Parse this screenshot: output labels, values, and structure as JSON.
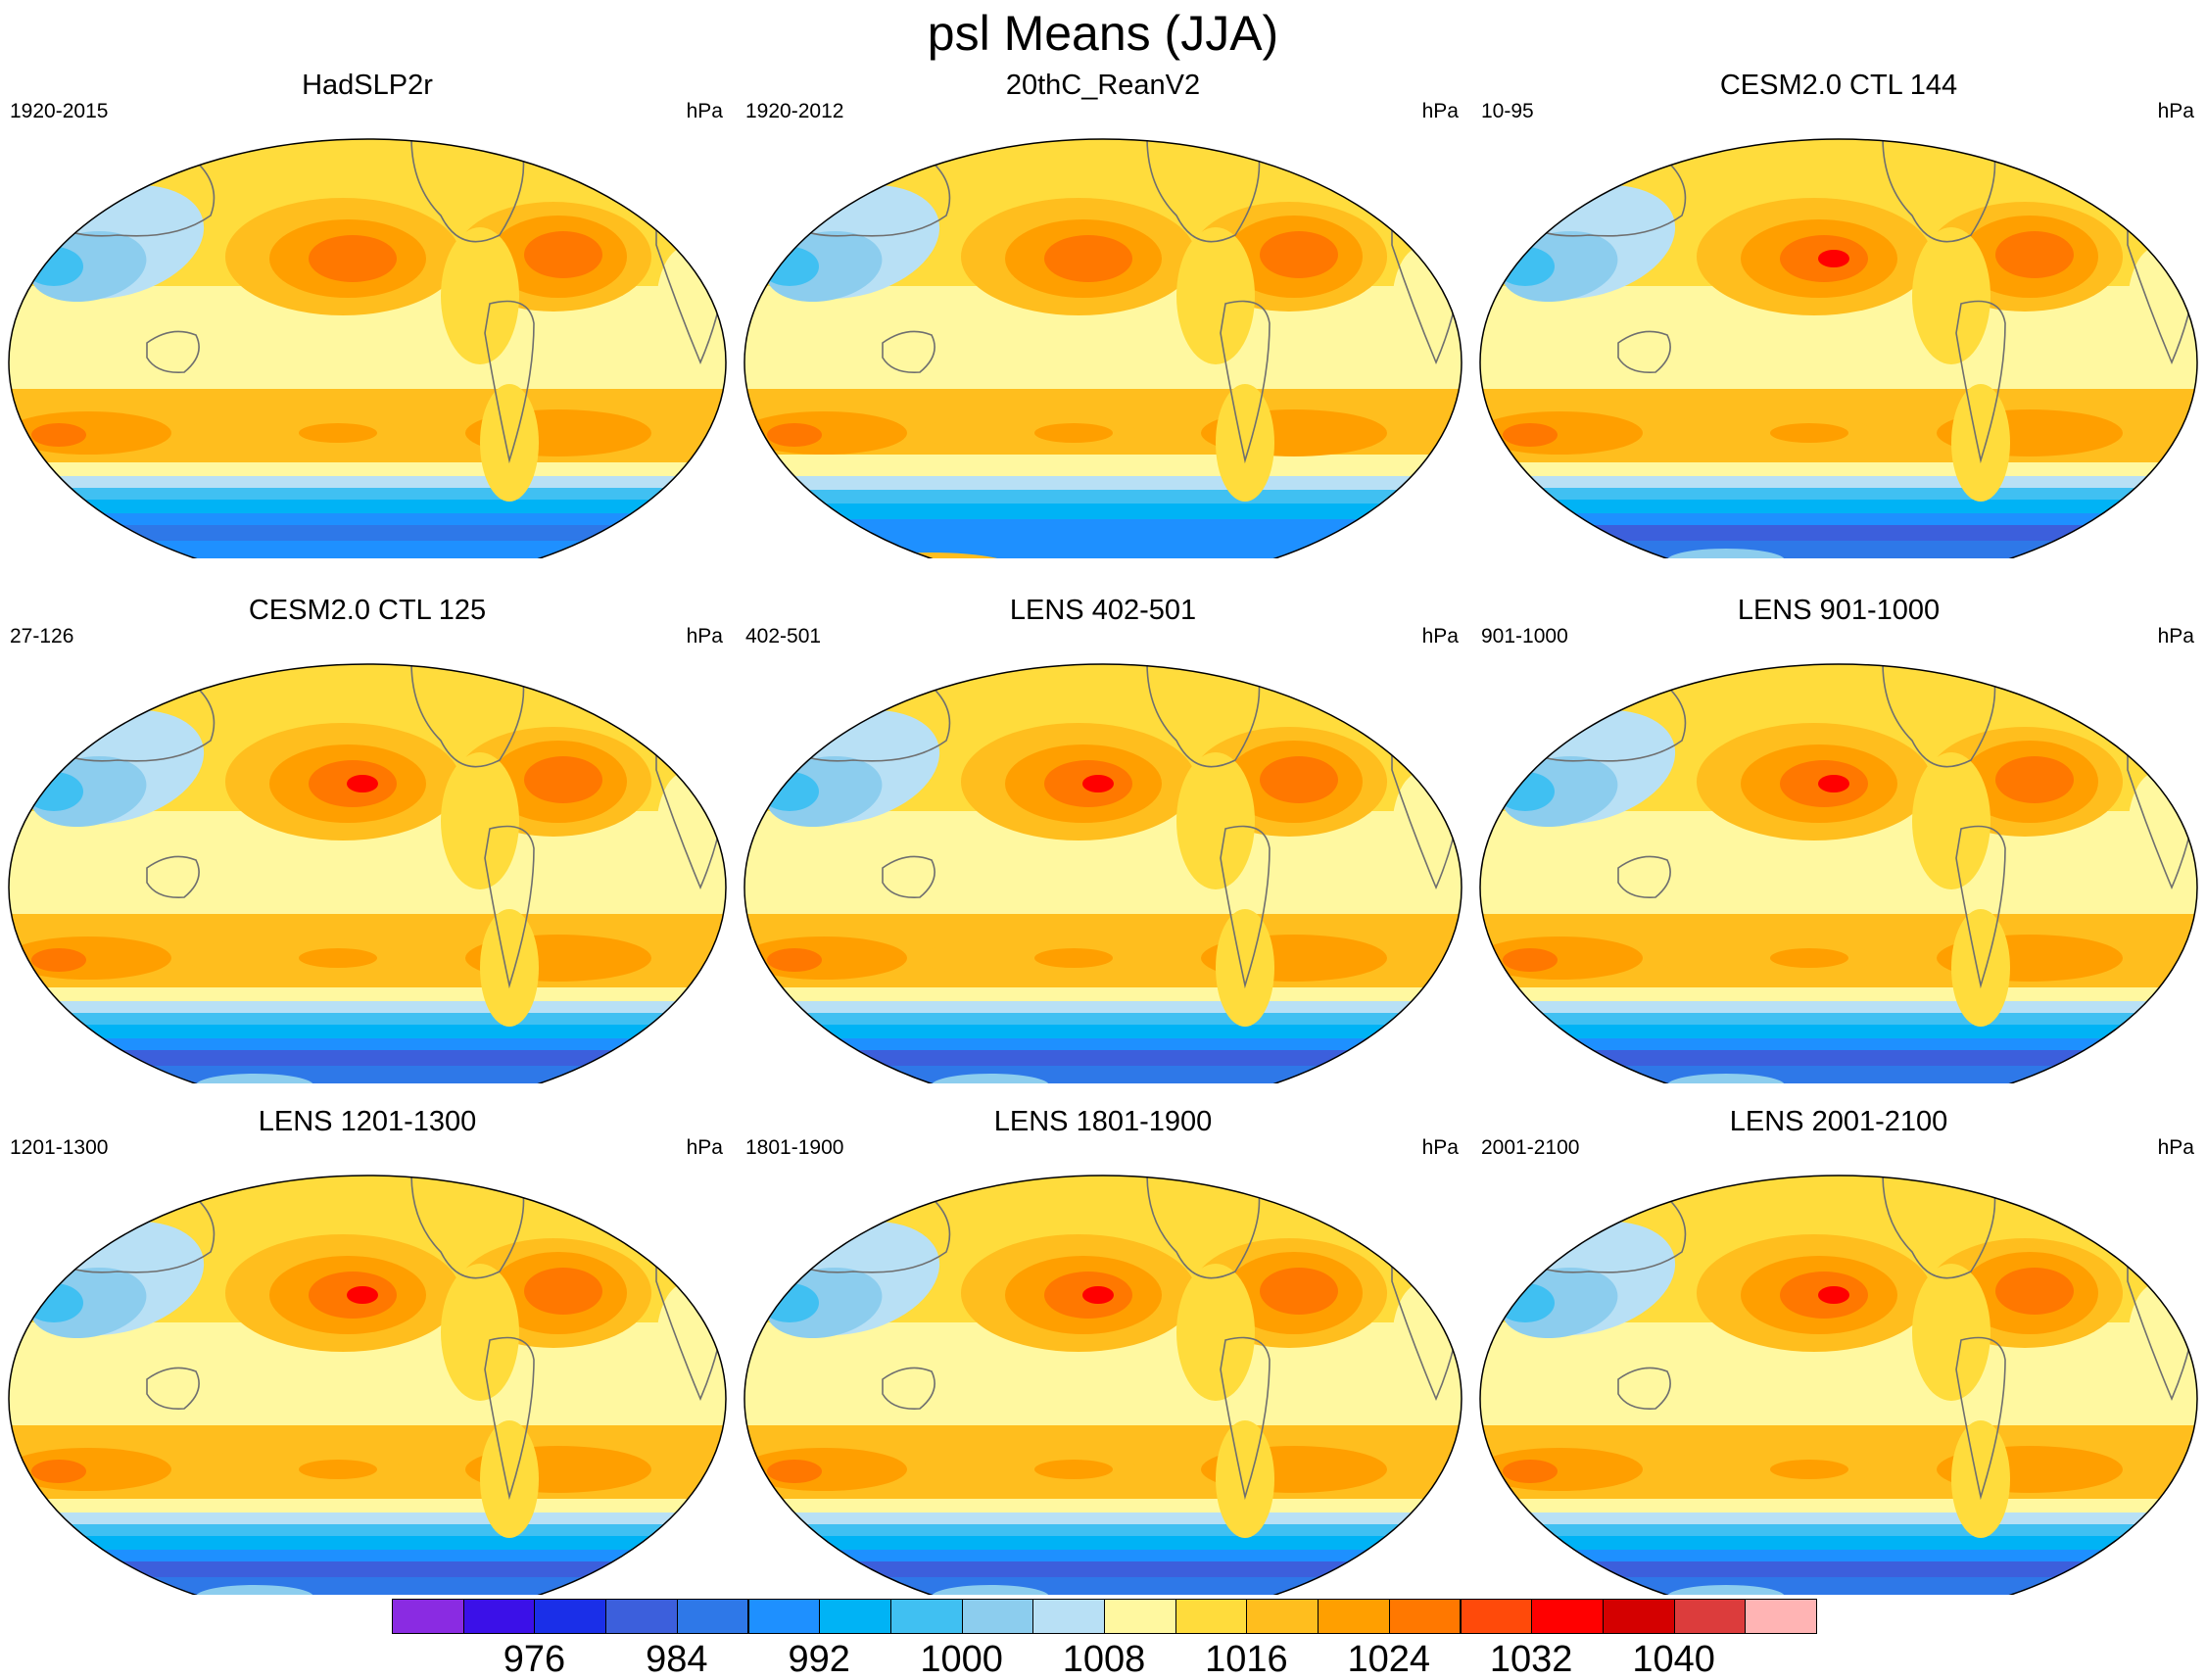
{
  "title": "psl Means (JJA)",
  "units": "hPa",
  "panels": [
    {
      "title": "HadSLP2r",
      "period": "1920-2015",
      "variant": "obs"
    },
    {
      "title": "20thC_ReanV2",
      "period": "1920-2012",
      "variant": "rean"
    },
    {
      "title": "CESM2.0 CTL 144",
      "period": "10-95",
      "variant": "model"
    },
    {
      "title": "CESM2.0 CTL 125",
      "period": "27-126",
      "variant": "model"
    },
    {
      "title": "LENS 402-501",
      "period": "402-501",
      "variant": "model"
    },
    {
      "title": "LENS 901-1000",
      "period": "901-1000",
      "variant": "model"
    },
    {
      "title": "LENS 1201-1300",
      "period": "1201-1300",
      "variant": "model"
    },
    {
      "title": "LENS 1801-1900",
      "period": "1801-1900",
      "variant": "model"
    },
    {
      "title": "LENS 2001-2100",
      "period": "2001-2100",
      "variant": "model"
    }
  ],
  "colorbar": {
    "levels": [
      972,
      976,
      980,
      984,
      988,
      992,
      996,
      1000,
      1004,
      1008,
      1012,
      1016,
      1020,
      1024,
      1028,
      1032,
      1036,
      1040,
      1044
    ],
    "tick_labels": [
      "976",
      "984",
      "992",
      "1000",
      "1008",
      "1016",
      "1024",
      "1032",
      "1040"
    ],
    "tick_level_index": [
      1,
      3,
      5,
      7,
      9,
      11,
      13,
      15,
      17
    ],
    "colors": [
      "#8a2be2",
      "#3b10e8",
      "#1a2fe8",
      "#3c5fdc",
      "#2e78e8",
      "#1e90ff",
      "#00b3f5",
      "#40c0f2",
      "#8ccdee",
      "#b8e0f5",
      "#fff8a0",
      "#ffdc3c",
      "#ffbe1e",
      "#ff9f00",
      "#ff7800",
      "#ff4a0a",
      "#ff0000",
      "#d40000",
      "#dc3c3c",
      "#ffb4b4"
    ]
  }
}
